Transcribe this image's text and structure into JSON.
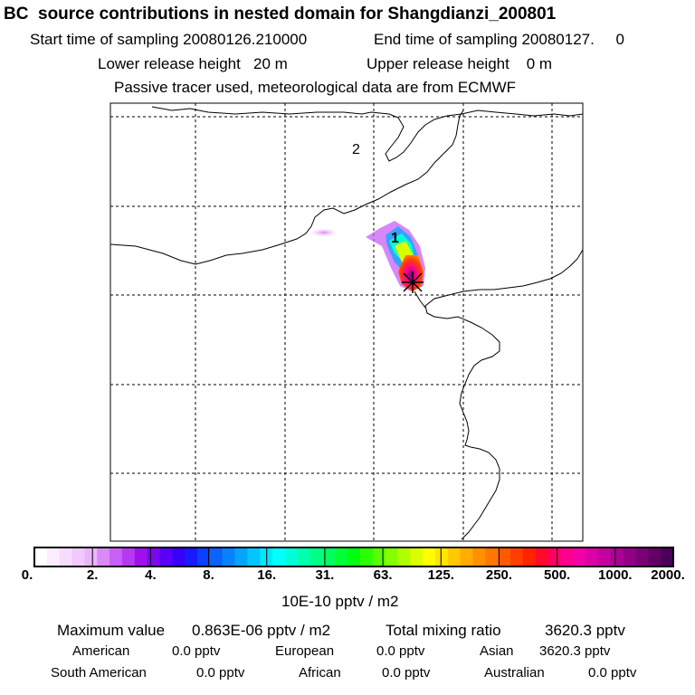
{
  "header": {
    "title": "BC  source contributions in nested domain for Shangdianzi_200801",
    "start_label": "Start time of sampling 20080126.210000",
    "end_label": "End time of sampling 20080127.     0",
    "lower_release": "Lower release height   20 m",
    "upper_release": "Upper release height    0 m",
    "note": "Passive tracer used, meteorological data are from ECMWF"
  },
  "map": {
    "site_labels": [
      "1",
      "2"
    ]
  },
  "colorbar": {
    "ticks": [
      "0.",
      "2.",
      "4.",
      "8.",
      "16.",
      "31.",
      "63.",
      "125.",
      "250.",
      "500.",
      "1000.",
      "2000."
    ],
    "colors": [
      "#ffffff",
      "#fbeefe",
      "#f6dcfd",
      "#f1c9fc",
      "#eab6fb",
      "#d98af8",
      "#c860f6",
      "#b539f3",
      "#a010ee",
      "#7a08f0",
      "#5a00f5",
      "#3800fa",
      "#1a1aff",
      "#0a40ff",
      "#0a62ff",
      "#0883ff",
      "#05a4ff",
      "#02c6ff",
      "#00e6ff",
      "#00ffff",
      "#00ffd8",
      "#00ffaf",
      "#00ff87",
      "#00ff5e",
      "#00ff36",
      "#00ff10",
      "#2cff00",
      "#58ff00",
      "#84ff00",
      "#b0ff00",
      "#dcff00",
      "#ffff00",
      "#ffe400",
      "#ffc800",
      "#ffad00",
      "#ff9100",
      "#ff7600",
      "#ff5a00",
      "#ff3e00",
      "#ff2300",
      "#ff0a2d",
      "#ff0065",
      "#ff0090",
      "#f200a8",
      "#dc00a6",
      "#c400a0",
      "#ab0098",
      "#920087",
      "#7b0076",
      "#630066",
      "#4a005a"
    ],
    "unit": "10E-10 pptv / m2"
  },
  "stats": {
    "max_label": "Maximum value",
    "max_value": "0.863E-06 pptv / m2",
    "total_label": "Total mixing ratio",
    "total_value": "3620.3 pptv",
    "regions": [
      {
        "name": "American",
        "value": "0.0 pptv"
      },
      {
        "name": "European",
        "value": "0.0 pptv"
      },
      {
        "name": "Asian",
        "value": "3620.3 pptv"
      },
      {
        "name": "South American",
        "value": "0.0 pptv"
      },
      {
        "name": "African",
        "value": "0.0 pptv"
      },
      {
        "name": "Australian",
        "value": "0.0 pptv"
      }
    ]
  }
}
